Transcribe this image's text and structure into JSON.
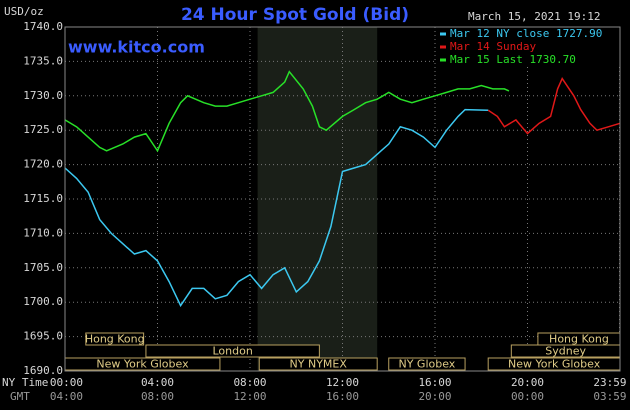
{
  "chart_data": {
    "type": "line",
    "title": "24 Hour Spot Gold (Bid)",
    "y_label": "USD/oz",
    "watermark": "www.kitco.com",
    "timestamp": "March 15, 2021 19:12",
    "x_row_labels": [
      "NY Time",
      "GMT"
    ],
    "xlim": [
      0,
      24
    ],
    "ylim": [
      1690,
      1740
    ],
    "yticks": [
      {
        "value": 1690,
        "label": "1690.0"
      },
      {
        "value": 1695,
        "label": "1695.0"
      },
      {
        "value": 1700,
        "label": "1700.0"
      },
      {
        "value": 1705,
        "label": "1705.0"
      },
      {
        "value": 1710,
        "label": "1710.0"
      },
      {
        "value": 1715,
        "label": "1715.0"
      },
      {
        "value": 1720,
        "label": "1720.0"
      },
      {
        "value": 1725,
        "label": "1725.0"
      },
      {
        "value": 1730,
        "label": "1730.0"
      },
      {
        "value": 1735,
        "label": "1735.0"
      },
      {
        "value": 1740,
        "label": "1740.0"
      }
    ],
    "xticks": [
      {
        "value": 0,
        "label": "00:00"
      },
      {
        "value": 4,
        "label": "04:00"
      },
      {
        "value": 8,
        "label": "08:00"
      },
      {
        "value": 12,
        "label": "12:00"
      },
      {
        "value": 16,
        "label": "16:00"
      },
      {
        "value": 20,
        "label": "20:00"
      },
      {
        "value": 23.98,
        "label": "23:59"
      }
    ],
    "xticks_gmt": [
      "04:00",
      "08:00",
      "12:00",
      "16:00",
      "20:00",
      "00:00",
      "03:59"
    ],
    "grid": true,
    "highlight": [
      8.33,
      13.5
    ],
    "sessions": [
      {
        "label": "Hong Kong",
        "start": 0.9,
        "end": 3.4
      },
      {
        "label": "Hong Kong",
        "start": 20.45,
        "end": 24
      },
      {
        "label": "London",
        "start": 3.5,
        "end": 11
      },
      {
        "label": "Sydney",
        "start": 19.3,
        "end": 24
      },
      {
        "label": "New York Globex",
        "start": 0,
        "end": 6.7
      },
      {
        "label": "NY NYMEX",
        "start": 8.4,
        "end": 13.5
      },
      {
        "label": "NY Globex",
        "start": 14,
        "end": 17.3
      },
      {
        "label": "New York Globex",
        "start": 18.3,
        "end": 24
      }
    ],
    "series": [
      {
        "name": "Mar 12 NY close 1727.90",
        "color": "#3cc8f0",
        "x": [
          0,
          0.5,
          1,
          1.5,
          2,
          2.5,
          3,
          3.5,
          4,
          4.5,
          5,
          5.5,
          6,
          6.5,
          7,
          7.5,
          8,
          8.5,
          9,
          9.5,
          10,
          10.5,
          11,
          11.5,
          12,
          12.5,
          13,
          13.5,
          14,
          14.5,
          15,
          15.5,
          16,
          16.5,
          17,
          17.3,
          18.3
        ],
        "values": [
          1719.5,
          1718,
          1716,
          1712,
          1710,
          1708.5,
          1707,
          1707.5,
          1706,
          1703,
          1699.5,
          1702,
          1702,
          1700.5,
          1701,
          1703,
          1704,
          1702,
          1704,
          1705,
          1701.5,
          1703,
          1706,
          1711,
          1719,
          1719.5,
          1720,
          1721.5,
          1723,
          1725.5,
          1725,
          1724,
          1722.5,
          1725,
          1727,
          1728,
          1727.9
        ]
      },
      {
        "name": "Mar 14 Sunday",
        "color": "#e01818",
        "x": [
          18.3,
          18.7,
          19,
          19.5,
          20,
          20.5,
          21,
          21.3,
          21.5,
          22,
          22.3,
          22.7,
          23,
          23.5,
          24
        ],
        "values": [
          1727.9,
          1727,
          1725.5,
          1726.5,
          1724.5,
          1726,
          1727,
          1731,
          1732.5,
          1730,
          1728,
          1726,
          1725,
          1725.5,
          1726
        ]
      },
      {
        "name": "Mar 15 Last 1730.70",
        "color": "#28e028",
        "x": [
          0,
          0.5,
          1,
          1.5,
          1.8,
          2.5,
          3,
          3.5,
          4,
          4.5,
          5,
          5.3,
          6,
          6.5,
          7,
          7.5,
          8,
          8.5,
          9,
          9.5,
          9.7,
          10.3,
          10.7,
          11,
          11.3,
          12,
          12.5,
          13,
          13.5,
          14,
          14.5,
          15,
          15.5,
          16,
          16.5,
          17,
          17.5,
          18,
          18.5,
          19,
          19.2
        ],
        "values": [
          1726.5,
          1725.5,
          1724,
          1722.5,
          1722,
          1723,
          1724,
          1724.5,
          1722,
          1726,
          1729,
          1730,
          1729,
          1728.5,
          1728.5,
          1729,
          1729.5,
          1730,
          1730.5,
          1732,
          1733.5,
          1731,
          1728.5,
          1725.5,
          1725,
          1727,
          1728,
          1729,
          1729.5,
          1730.5,
          1729.5,
          1729,
          1729.5,
          1730,
          1730.5,
          1731,
          1731,
          1731.5,
          1731,
          1731,
          1730.7
        ]
      }
    ]
  }
}
